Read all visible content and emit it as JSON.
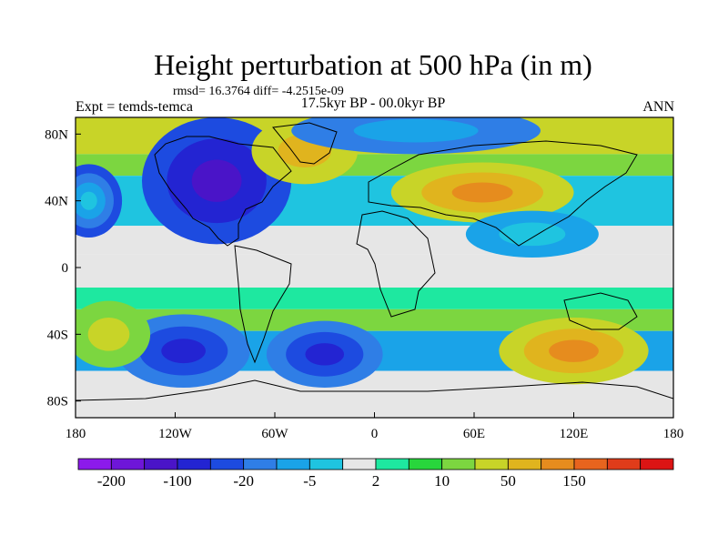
{
  "title": "Height perturbation at 500 hPa (in m)",
  "stats": "rmsd= 16.3764 diff= -4.2515e-09",
  "left_label": "Expt = temds-temca",
  "center_label": "17.5kyr BP - 00.0kyr BP",
  "right_label": "ANN",
  "map_data": {
    "type": "filled-contour-map",
    "projection": "cylindrical-equidistant",
    "lon_range": [
      -180,
      180
    ],
    "lat_range": [
      -90,
      90
    ],
    "x_ticks": [
      {
        "value": -180,
        "label": "180"
      },
      {
        "value": -120,
        "label": "120W"
      },
      {
        "value": -60,
        "label": "60W"
      },
      {
        "value": 0,
        "label": "0"
      },
      {
        "value": 60,
        "label": "60E"
      },
      {
        "value": 120,
        "label": "120E"
      },
      {
        "value": 180,
        "label": "180"
      }
    ],
    "y_ticks": [
      {
        "value": 80,
        "label": "80N"
      },
      {
        "value": 40,
        "label": "40N"
      },
      {
        "value": 0,
        "label": "0"
      },
      {
        "value": -40,
        "label": "40S"
      },
      {
        "value": -80,
        "label": "80S"
      }
    ],
    "colorbar": {
      "colors": [
        "#8c1aeb",
        "#6e16d8",
        "#4a14c8",
        "#2324d2",
        "#1d4be0",
        "#2f7ee6",
        "#1aa3e8",
        "#1fc4e0",
        "#e6e6e6",
        "#1ee8a0",
        "#28d63c",
        "#7cd640",
        "#c8d428",
        "#e0b41e",
        "#e68c1e",
        "#e8641e",
        "#e03c1a",
        "#dc1414"
      ],
      "labels": [
        {
          "after_box": 1,
          "text": "-200"
        },
        {
          "after_box": 3,
          "text": "-100"
        },
        {
          "after_box": 5,
          "text": "-20"
        },
        {
          "after_box": 7,
          "text": "-5"
        },
        {
          "after_box": 9,
          "text": "2"
        },
        {
          "after_box": 11,
          "text": "10"
        },
        {
          "after_box": 13,
          "text": "50"
        },
        {
          "after_box": 15,
          "text": "150"
        }
      ]
    },
    "regions": [
      {
        "name": "north-pacific-low",
        "lon": -172,
        "lat": 40,
        "rx": 20,
        "ry": 22,
        "levels": [
          4,
          5,
          6,
          7
        ]
      },
      {
        "name": "north-america-low",
        "lon": -95,
        "lat": 52,
        "rx": 45,
        "ry": 38,
        "levels": [
          4,
          3,
          2
        ]
      },
      {
        "name": "north-atlantic-high",
        "lon": -42,
        "lat": 70,
        "rx": 32,
        "ry": 20,
        "levels": [
          12,
          13
        ]
      },
      {
        "name": "arctic-low",
        "lon": 25,
        "lat": 82,
        "rx": 75,
        "ry": 14,
        "levels": [
          5,
          6
        ]
      },
      {
        "name": "eurasia-high",
        "lon": 65,
        "lat": 45,
        "rx": 55,
        "ry": 18,
        "levels": [
          12,
          13,
          14
        ]
      },
      {
        "name": "east-asia-trough",
        "lon": 95,
        "lat": 20,
        "rx": 40,
        "ry": 14,
        "levels": [
          6,
          7
        ]
      },
      {
        "name": "south-pacific-low",
        "lon": -115,
        "lat": -50,
        "rx": 40,
        "ry": 22,
        "levels": [
          5,
          4,
          3
        ]
      },
      {
        "name": "south-atlantic-low",
        "lon": -30,
        "lat": -52,
        "rx": 35,
        "ry": 20,
        "levels": [
          5,
          4,
          3
        ]
      },
      {
        "name": "indian-ocean-high",
        "lon": 120,
        "lat": -50,
        "rx": 45,
        "ry": 20,
        "levels": [
          12,
          13,
          14
        ]
      },
      {
        "name": "south-east-pacific-high",
        "lon": -160,
        "lat": -40,
        "rx": 25,
        "ry": 20,
        "levels": [
          11,
          12
        ]
      }
    ]
  }
}
